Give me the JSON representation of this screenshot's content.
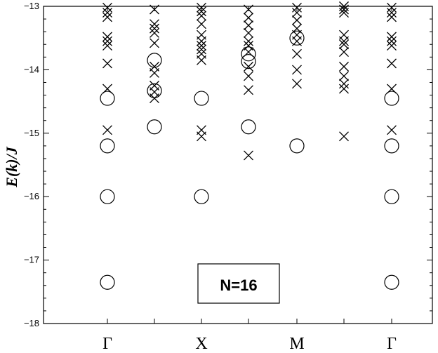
{
  "chart_data": {
    "type": "scatter",
    "ylabel": "E(k)/J",
    "annotation": "N=16",
    "ylim": [
      -18,
      -13
    ],
    "yticks": [
      -13,
      -14,
      -15,
      -16,
      -17,
      -18
    ],
    "ytick_labels": [
      "−13",
      "−14",
      "−15",
      "−16",
      "−17",
      "−18"
    ],
    "columns": [
      1,
      2,
      3,
      4,
      5,
      6,
      7
    ],
    "x_categories": [
      {
        "col": 1,
        "label": "Γ"
      },
      {
        "col": 3,
        "label": "X"
      },
      {
        "col": 5,
        "label": "M"
      },
      {
        "col": 7,
        "label": "Γ"
      }
    ],
    "series": [
      {
        "marker": "circle",
        "points": [
          [
            1,
            -14.45
          ],
          [
            1,
            -15.2
          ],
          [
            1,
            -16.0
          ],
          [
            1,
            -17.35
          ],
          [
            2,
            -13.85
          ],
          [
            2,
            -14.33
          ],
          [
            2,
            -14.9
          ],
          [
            3,
            -14.45
          ],
          [
            3,
            -16.0
          ],
          [
            4,
            -13.75
          ],
          [
            4,
            -13.87
          ],
          [
            4,
            -14.9
          ],
          [
            5,
            -13.5
          ],
          [
            5,
            -15.2
          ],
          [
            7,
            -14.45
          ],
          [
            7,
            -15.2
          ],
          [
            7,
            -16.0
          ],
          [
            7,
            -17.35
          ]
        ]
      },
      {
        "marker": "cross",
        "points": [
          [
            1,
            -13.02
          ],
          [
            1,
            -13.1
          ],
          [
            1,
            -13.17
          ],
          [
            1,
            -13.48
          ],
          [
            1,
            -13.55
          ],
          [
            1,
            -13.62
          ],
          [
            1,
            -13.9
          ],
          [
            1,
            -14.3
          ],
          [
            1,
            -14.95
          ],
          [
            2,
            -13.05
          ],
          [
            2,
            -13.28
          ],
          [
            2,
            -13.35
          ],
          [
            2,
            -13.42
          ],
          [
            2,
            -13.58
          ],
          [
            2,
            -13.95
          ],
          [
            2,
            -14.05
          ],
          [
            2,
            -14.25
          ],
          [
            2,
            -14.35
          ],
          [
            2,
            -14.45
          ],
          [
            3,
            -13.02
          ],
          [
            3,
            -13.08
          ],
          [
            3,
            -13.15
          ],
          [
            3,
            -13.28
          ],
          [
            3,
            -13.45
          ],
          [
            3,
            -13.55
          ],
          [
            3,
            -13.62
          ],
          [
            3,
            -13.68
          ],
          [
            3,
            -13.75
          ],
          [
            3,
            -13.85
          ],
          [
            3,
            -14.95
          ],
          [
            3,
            -15.05
          ],
          [
            4,
            -13.05
          ],
          [
            4,
            -13.18
          ],
          [
            4,
            -13.3
          ],
          [
            4,
            -13.42
          ],
          [
            4,
            -13.55
          ],
          [
            4,
            -13.62
          ],
          [
            4,
            -13.72
          ],
          [
            4,
            -13.95
          ],
          [
            4,
            -14.1
          ],
          [
            4,
            -14.32
          ],
          [
            4,
            -15.35
          ],
          [
            5,
            -13.02
          ],
          [
            5,
            -13.1
          ],
          [
            5,
            -13.22
          ],
          [
            5,
            -13.35
          ],
          [
            5,
            -13.45
          ],
          [
            5,
            -13.55
          ],
          [
            5,
            -13.75
          ],
          [
            5,
            -14.0
          ],
          [
            5,
            -14.22
          ],
          [
            6,
            -13.0
          ],
          [
            6,
            -13.05
          ],
          [
            6,
            -13.1
          ],
          [
            6,
            -13.45
          ],
          [
            6,
            -13.55
          ],
          [
            6,
            -13.6
          ],
          [
            6,
            -13.72
          ],
          [
            6,
            -13.95
          ],
          [
            6,
            -14.1
          ],
          [
            6,
            -14.22
          ],
          [
            6,
            -14.3
          ],
          [
            6,
            -15.05
          ],
          [
            7,
            -13.02
          ],
          [
            7,
            -13.1
          ],
          [
            7,
            -13.17
          ],
          [
            7,
            -13.48
          ],
          [
            7,
            -13.55
          ],
          [
            7,
            -13.62
          ],
          [
            7,
            -13.9
          ],
          [
            7,
            -14.3
          ],
          [
            7,
            -14.95
          ]
        ]
      }
    ]
  }
}
